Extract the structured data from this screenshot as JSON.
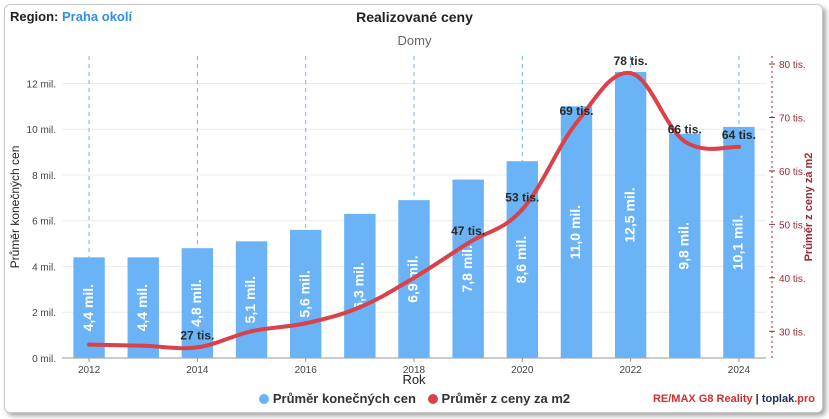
{
  "header": {
    "region_label": "Region:",
    "region_value": "Praha okolí",
    "title": "Realizované ceny",
    "subtitle": "Domy"
  },
  "branding": {
    "remax_re": "RE/",
    "remax_rest": "MAX G8 Reality",
    "separator": " | ",
    "toplak": "toplak",
    "toplak_tld": ".pro"
  },
  "chart_data": {
    "type": "bar",
    "xlabel": "Rok",
    "ylabel": "Průměr konečných cen",
    "y2label": "Průměr z ceny za m2",
    "categories": [
      2012,
      2013,
      2014,
      2015,
      2016,
      2017,
      2018,
      2019,
      2020,
      2021,
      2022,
      2023,
      2024
    ],
    "x_ticks": [
      "2012",
      "2014",
      "2016",
      "2018",
      "2020",
      "2022",
      "2024"
    ],
    "y_ticks": [
      "0 mil.",
      "2 mil.",
      "4 mil.",
      "6 mil.",
      "8 mil.",
      "10 mil.",
      "12 mil."
    ],
    "y2_ticks": [
      "30 tis.",
      "40 tis.",
      "50 tis.",
      "60 tis.",
      "70 tis.",
      "80 tis."
    ],
    "ylim": [
      0,
      13.2
    ],
    "y2lim": [
      25,
      81.5
    ],
    "legend_placement": "bottom-center",
    "series": [
      {
        "name": "Průměr konečných cen",
        "chart": "bar",
        "color": "#6ab3f7",
        "values": [
          4.4,
          4.4,
          4.8,
          5.1,
          5.6,
          6.3,
          6.9,
          7.8,
          8.6,
          11.0,
          12.5,
          9.8,
          10.1
        ],
        "labels": [
          "4,4 mil.",
          "4,4 mil.",
          "4,8 mil.",
          "5,1 mil.",
          "5,6 mil.",
          "6,3 mil.",
          "6,9 mil.",
          "7,8 mil.",
          "8,6 mil.",
          "11,0 mil.",
          "12,5 mil.",
          "9,8 mil.",
          "10,1 mil."
        ]
      },
      {
        "name": "Průměr z ceny za m2",
        "chart": "line",
        "axis": "right",
        "color": "#d9424b",
        "values": [
          27.5,
          27.3,
          27.0,
          30.0,
          31.5,
          34.5,
          40.0,
          46.5,
          52.8,
          69.0,
          78.3,
          65.5,
          64.5
        ],
        "labels": {
          "2": "27 tis.",
          "7": "47 tis.",
          "8": "53 tis.",
          "9": "69 tis.",
          "10": "78 tis.",
          "11": "66 tis.",
          "12": "64 tis."
        }
      }
    ]
  }
}
